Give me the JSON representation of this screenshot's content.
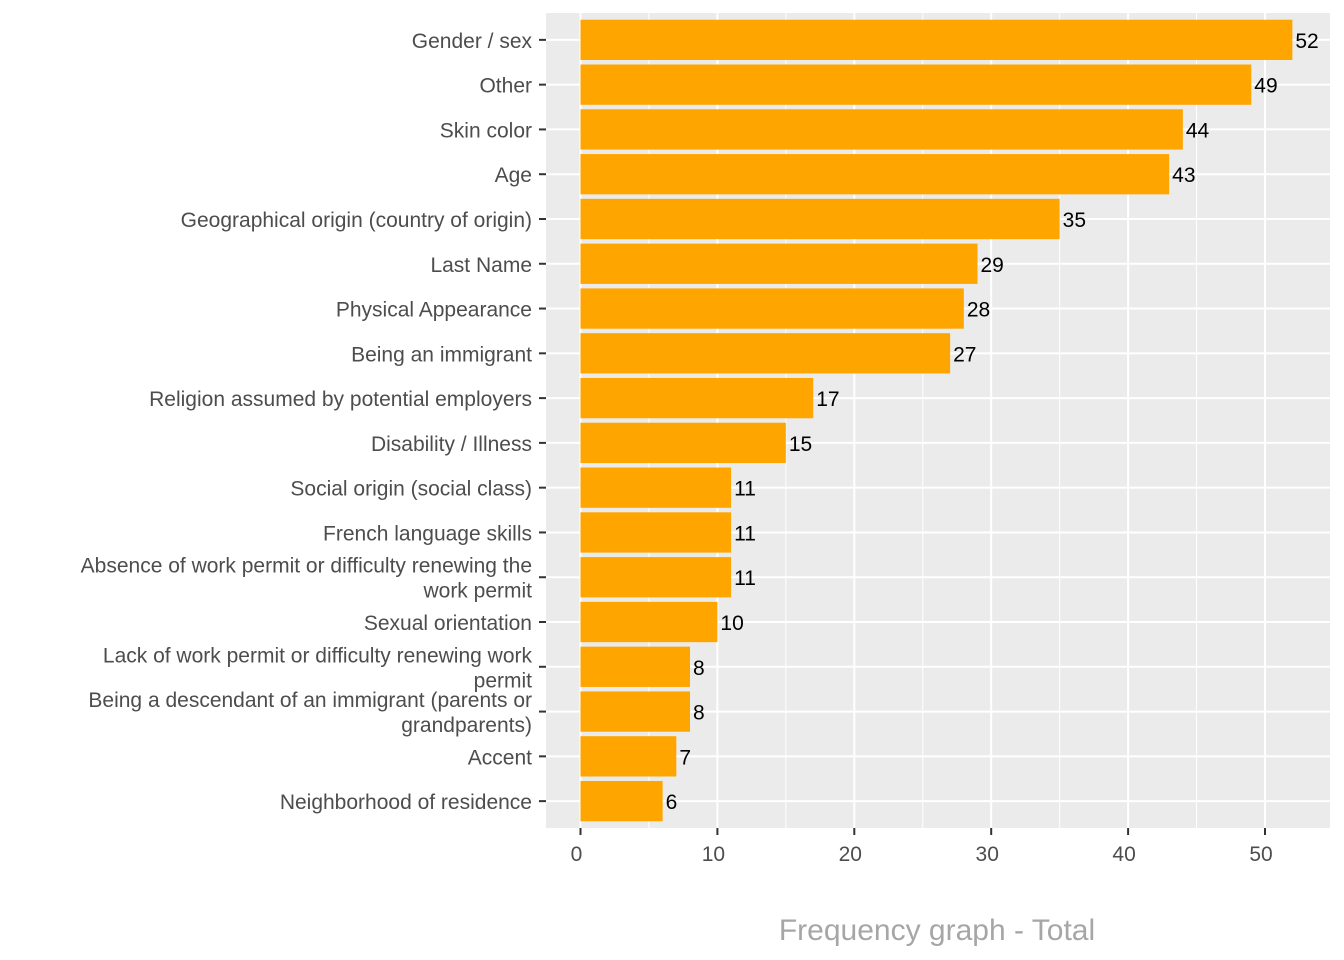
{
  "chart_data": {
    "type": "bar",
    "orientation": "horizontal",
    "title": "",
    "xlabel": "Frequency graph - Total",
    "ylabel": "",
    "xlim": [
      -2.6,
      55.5
    ],
    "xticks": [
      0,
      10,
      20,
      30,
      40,
      50
    ],
    "grid": true,
    "legend": "none",
    "bar_color": "#FFA500",
    "panel_color": "#EBEBEB",
    "categories": [
      [
        "Gender / sex"
      ],
      [
        "Other"
      ],
      [
        "Skin color"
      ],
      [
        "Age"
      ],
      [
        "Geographical origin (country of origin)"
      ],
      [
        "Last Name"
      ],
      [
        "Physical Appearance"
      ],
      [
        "Being an immigrant"
      ],
      [
        "Religion assumed by potential employers"
      ],
      [
        "Disability / Illness"
      ],
      [
        "Social origin (social class)"
      ],
      [
        "French language skills"
      ],
      [
        "Absence of work permit or difficulty renewing the",
        "work permit"
      ],
      [
        "Sexual orientation"
      ],
      [
        "Lack of work permit or difficulty renewing work",
        "permit"
      ],
      [
        "Being a descendant of an immigrant (parents or",
        "grandparents)"
      ],
      [
        "Accent"
      ],
      [
        "Neighborhood of residence"
      ]
    ],
    "values": [
      52,
      49,
      44,
      43,
      35,
      29,
      28,
      27,
      17,
      15,
      11,
      11,
      11,
      10,
      8,
      8,
      7,
      6
    ]
  }
}
